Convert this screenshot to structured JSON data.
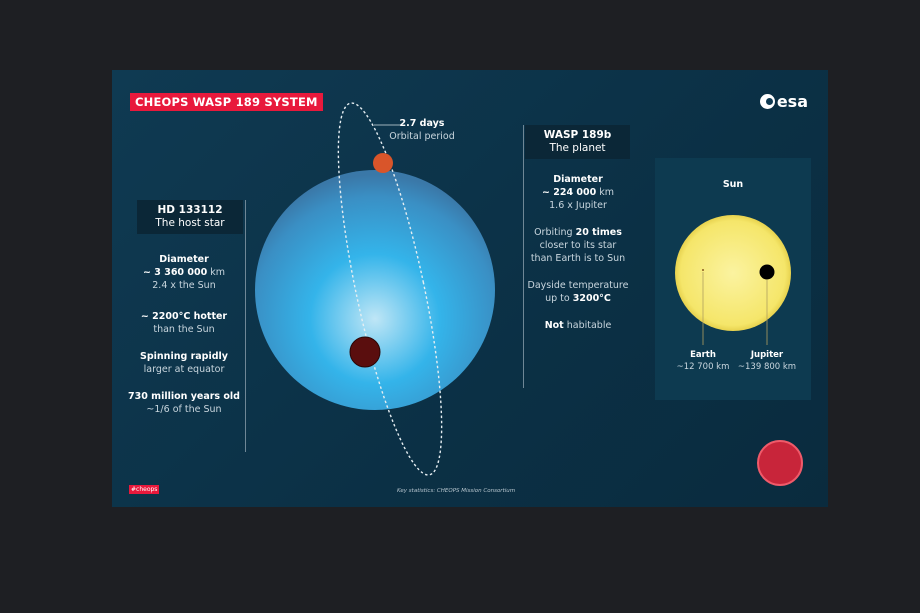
{
  "title": "CHEOPS WASP 189 SYSTEM",
  "logo": "esa",
  "orbit": {
    "value": "2.7 days",
    "label": "Orbital period"
  },
  "star": {
    "name": "HD 133112",
    "subtitle": "The host star",
    "facts": [
      {
        "bold": "Diameter",
        "line2_bold": "~ 3 360 000",
        "line2_rest": " km",
        "line3": "2.4 x the Sun"
      },
      {
        "bold": "~ 2200°C hotter",
        "line2": "than the Sun"
      },
      {
        "bold": "Spinning rapidly",
        "line2": "larger at equator"
      },
      {
        "bold": "730 million years old",
        "line2": "~1/6 of the Sun"
      }
    ]
  },
  "planet": {
    "name": "WASP 189b",
    "subtitle": "The planet",
    "diameter_label": "Diameter",
    "diameter_value": "~ 224 000",
    "diameter_unit": " km",
    "diameter_compare": "1.6 x Jupiter",
    "orbit_pre": "Orbiting ",
    "orbit_bold": "20 times",
    "orbit_l2": "closer to its star",
    "orbit_l3": "than Earth is to Sun",
    "temp_l1": "Dayside temperature",
    "temp_pre": "up to ",
    "temp_bold": "3200°C",
    "hab_bold": "Not",
    "hab_rest": " habitable"
  },
  "comparison": {
    "title": "Sun",
    "earth": {
      "name": "Earth",
      "size": "~12 700 km"
    },
    "jupiter": {
      "name": "Jupiter",
      "size": "~139 800 km"
    }
  },
  "hashtag": "#cheops",
  "credit": "Key statistics: CHEOPS Mission Consortium",
  "colors": {
    "accent": "#e8193c",
    "background": "#0f3a52",
    "star": "#3fb6ea",
    "sun": "#f7ec7a",
    "planet": "#5a0e0e"
  }
}
